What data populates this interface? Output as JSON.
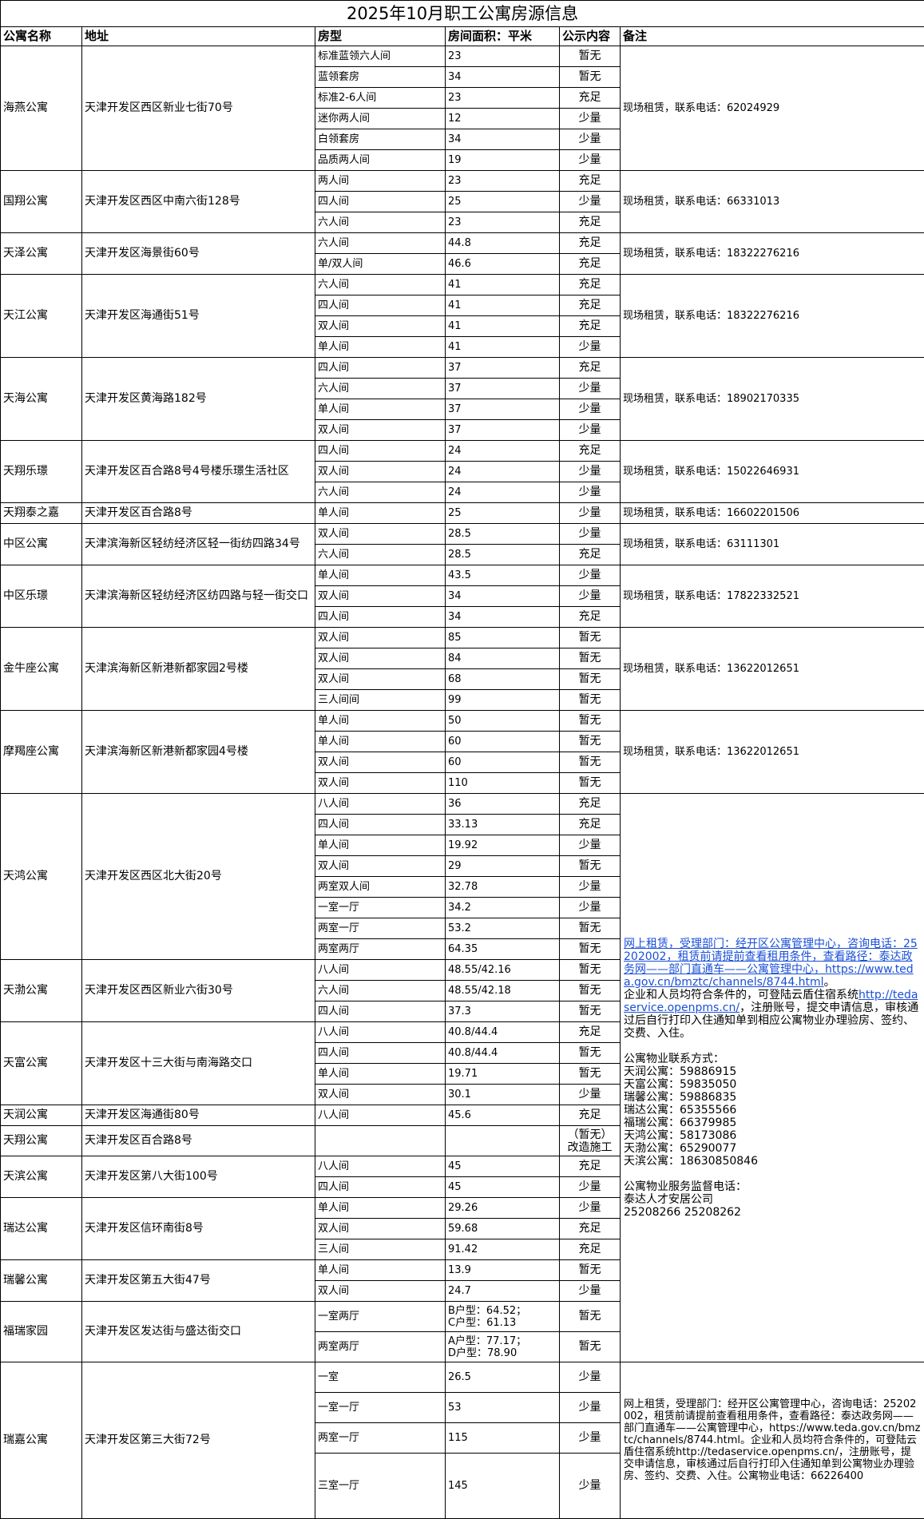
{
  "title": "2025年10月职工公寓房源信息",
  "headers": [
    "公寓名称",
    "地址",
    "房型",
    "房间面积：平米",
    "公示内容",
    "备注"
  ],
  "apartments": [
    {
      "name": "海燕公寓",
      "address": "天津开发区西区新业七街70号",
      "remark": "现场租赁，联系电话：62024929",
      "rooms": [
        {
          "type": "标准蓝领六人间",
          "area": "23",
          "status": "暂无"
        },
        {
          "type": "蓝领套房",
          "area": "34",
          "status": "暂无"
        },
        {
          "type": "标准2-6人间",
          "area": "23",
          "status": "充足"
        },
        {
          "type": "迷你两人间",
          "area": "12",
          "status": "少量"
        },
        {
          "type": "白领套房",
          "area": "34",
          "status": "少量"
        },
        {
          "type": "品质两人间",
          "area": "19",
          "status": "少量"
        }
      ]
    },
    {
      "name": "国翔公寓",
      "address": "天津开发区西区中南六街128号",
      "remark": "现场租赁，联系电话：66331013",
      "rooms": [
        {
          "type": "两人间",
          "area": "23",
          "status": "充足"
        },
        {
          "type": "四人间",
          "area": "25",
          "status": "少量"
        },
        {
          "type": "六人间",
          "area": "23",
          "status": "充足"
        }
      ]
    },
    {
      "name": "天泽公寓",
      "address": "天津开发区海景街60号",
      "remark": "现场租赁，联系电话：18322276216",
      "rooms": [
        {
          "type": "六人间",
          "area": "44.8",
          "status": "充足"
        },
        {
          "type": "单/双人间",
          "area": "46.6",
          "status": "充足"
        }
      ]
    },
    {
      "name": "天江公寓",
      "address": "天津开发区海通街51号",
      "remark": "现场租赁，联系电话：18322276216",
      "rooms": [
        {
          "type": "六人间",
          "area": "41",
          "status": "充足"
        },
        {
          "type": "四人间",
          "area": "41",
          "status": "充足"
        },
        {
          "type": "双人间",
          "area": "41",
          "status": "充足"
        },
        {
          "type": "单人间",
          "area": "41",
          "status": "少量"
        }
      ]
    },
    {
      "name": "天海公寓",
      "address": "天津开发区黄海路182号",
      "remark": "现场租赁，联系电话：18902170335",
      "rooms": [
        {
          "type": "四人间",
          "area": "37",
          "status": "充足"
        },
        {
          "type": "六人间",
          "area": "37",
          "status": "少量"
        },
        {
          "type": "单人间",
          "area": "37",
          "status": "少量"
        },
        {
          "type": "双人间",
          "area": "37",
          "status": "少量"
        }
      ]
    },
    {
      "name": "天翔乐璟",
      "address": "天津开发区百合路8号4号楼乐璟生活社区",
      "remark": "现场租赁，联系电话：15022646931",
      "rooms": [
        {
          "type": "四人间",
          "area": "24",
          "status": "充足"
        },
        {
          "type": "双人间",
          "area": "24",
          "status": "少量"
        },
        {
          "type": "六人间",
          "area": "24",
          "status": "少量"
        }
      ]
    },
    {
      "name": "天翔泰之嘉",
      "address": "天津开发区百合路8号",
      "remark": "现场租赁，联系电话：16602201506",
      "rooms": [
        {
          "type": "单人间",
          "area": "25",
          "status": "少量"
        }
      ]
    },
    {
      "name": "中区公寓",
      "address": "天津滨海新区轻纺经济区轻一街纺四路34号",
      "remark": "现场租赁，联系电话：63111301",
      "rooms": [
        {
          "type": "双人间",
          "area": "28.5",
          "status": "少量"
        },
        {
          "type": "六人间",
          "area": "28.5",
          "status": "充足"
        }
      ]
    },
    {
      "name": "中区乐璟",
      "address": "天津滨海新区轻纺经济区纺四路与轻一街交口",
      "remark": "现场租赁，联系电话：17822332521",
      "rooms": [
        {
          "type": "单人间",
          "area": "43.5",
          "status": "少量"
        },
        {
          "type": "双人间",
          "area": "34",
          "status": "少量"
        },
        {
          "type": "四人间",
          "area": "34",
          "status": "充足"
        }
      ]
    },
    {
      "name": "金牛座公寓",
      "address": "天津滨海新区新港新都家园2号楼",
      "remark": "现场租赁，联系电话：13622012651",
      "rooms": [
        {
          "type": "双人间",
          "area": "85",
          "status": "暂无"
        },
        {
          "type": "双人间",
          "area": "84",
          "status": "暂无"
        },
        {
          "type": "双人间",
          "area": "68",
          "status": "暂无"
        },
        {
          "type": "三人间间",
          "area": "99",
          "status": "暂无"
        }
      ]
    },
    {
      "name": "摩羯座公寓",
      "address": "天津滨海新区新港新都家园4号楼",
      "remark": "现场租赁，联系电话：13622012651",
      "rooms": [
        {
          "type": "单人间",
          "area": "50",
          "status": "暂无"
        },
        {
          "type": "单人间",
          "area": "60",
          "status": "暂无"
        },
        {
          "type": "双人间",
          "area": "60",
          "status": "暂无"
        },
        {
          "type": "双人间",
          "area": "110",
          "status": "暂无"
        }
      ]
    },
    {
      "name": "天鸿公寓",
      "address": "天津开发区西区北大街20号",
      "remark_key": "shared_remark",
      "rooms": [
        {
          "type": "八人间",
          "area": "36",
          "status": "充足"
        },
        {
          "type": "四人间",
          "area": "33.13",
          "status": "充足"
        },
        {
          "type": "单人间",
          "area": "19.92",
          "status": "少量"
        },
        {
          "type": "双人间",
          "area": "29",
          "status": "暂无"
        },
        {
          "type": "两室双人间",
          "area": "32.78",
          "status": "少量"
        },
        {
          "type": "一室一厅",
          "area": "34.2",
          "status": "少量"
        },
        {
          "type": "两室一厅",
          "area": "53.2",
          "status": "暂无"
        },
        {
          "type": "两室两厅",
          "area": "64.35",
          "status": "暂无"
        }
      ]
    },
    {
      "name": "天渤公寓",
      "address": "天津开发区西区新业六街30号",
      "remark_merged": true,
      "rooms": [
        {
          "type": "八人间",
          "area": "48.55/42.16",
          "status": "暂无"
        },
        {
          "type": "六人间",
          "area": "48.55/42.18",
          "status": "暂无"
        },
        {
          "type": "四人间",
          "area": "37.3",
          "status": "暂无"
        }
      ]
    },
    {
      "name": "天富公寓",
      "address": "天津开发区十三大街与南海路交口",
      "remark_merged": true,
      "rooms": [
        {
          "type": "八人间",
          "area": "40.8/44.4",
          "status": "充足"
        },
        {
          "type": "四人间",
          "area": "40.8/44.4",
          "status": "暂无"
        },
        {
          "type": "单人间",
          "area": "19.71",
          "status": "暂无"
        },
        {
          "type": "双人间",
          "area": "30.1",
          "status": "少量"
        }
      ]
    },
    {
      "name": "天润公寓",
      "address": "天津开发区海通街80号",
      "remark_merged": true,
      "rooms": [
        {
          "type": "八人间",
          "area": "45.6",
          "status": "充足"
        }
      ]
    },
    {
      "name": "天翔公寓",
      "address": "天津开发区百合路8号",
      "remark_merged": true,
      "rooms": [
        {
          "type": "",
          "area": "",
          "status": "（暂无）改造施工",
          "tall": true
        }
      ]
    },
    {
      "name": "天滨公寓",
      "address": "天津开发区第八大街100号",
      "remark_merged": true,
      "rooms": [
        {
          "type": "八人间",
          "area": "45",
          "status": "充足"
        },
        {
          "type": "四人间",
          "area": "45",
          "status": "少量"
        }
      ]
    },
    {
      "name": "瑞达公寓",
      "address": "天津开发区信环南街8号",
      "remark_merged": true,
      "rooms": [
        {
          "type": "单人间",
          "area": "29.26",
          "status": "少量"
        },
        {
          "type": "双人间",
          "area": "59.68",
          "status": "充足"
        },
        {
          "type": "三人间",
          "area": "91.42",
          "status": "充足"
        }
      ]
    },
    {
      "name": "瑞馨公寓",
      "address": "天津开发区第五大街47号",
      "remark_merged": true,
      "rooms": [
        {
          "type": "单人间",
          "area": "13.9",
          "status": "暂无"
        },
        {
          "type": "双人间",
          "area": "24.7",
          "status": "少量"
        }
      ]
    },
    {
      "name": "福瑞家园",
      "address": "天津开发区发达街与盛达街交口",
      "remark_merged": true,
      "rooms": [
        {
          "type": "一室两厅",
          "area": "B户型：64.52；\nC户型：61.13",
          "status": "暂无",
          "tall": true
        },
        {
          "type": "两室两厅",
          "area": "A户型：77.17；\nD户型：78.90",
          "status": "暂无",
          "tall": true
        }
      ]
    },
    {
      "name": "瑞嘉公寓",
      "address": "天津开发区第三大街72号",
      "remark_key": "ruijia_remark",
      "rooms": [
        {
          "type": "一室",
          "area": "26.5",
          "status": "少量",
          "tall": true
        },
        {
          "type": "一室一厅",
          "area": "53",
          "status": "少量",
          "tall": true
        },
        {
          "type": "两室一厅",
          "area": "115",
          "status": "少量",
          "tall": true
        },
        {
          "type": "三室一厅",
          "area": "145",
          "status": "少量",
          "big": true
        }
      ]
    }
  ],
  "shared_remark": [
    [
      {
        "text": "网上租赁，受理部门：经开区公寓管理中心，咨询电话：25202002，租赁前请提前查看租用条件，查看路径：泰达政务网——部门直通车——公寓管理中心，https://www.teda.gov.cn/bmztc/channels/8744.html",
        "link": true
      },
      {
        "text": "。"
      }
    ],
    [
      {
        "text": "企业和人员均符合条件的，可登陆云盾住宿系统"
      },
      {
        "text": "http://tedaservice.openpms.cn/",
        "link": true
      },
      {
        "text": "，注册账号，提交申请信息，审核通过后自行打印入住通知单到相应公寓物业办理验房、签约、交费、入住。"
      }
    ],
    [],
    [
      {
        "text": "公寓物业联系方式："
      }
    ],
    [
      {
        "text": "天润公寓：59886915"
      }
    ],
    [
      {
        "text": "天富公寓：59835050"
      }
    ],
    [
      {
        "text": "瑞馨公寓：59886835"
      }
    ],
    [
      {
        "text": "瑞达公寓：65355566"
      }
    ],
    [
      {
        "text": "福瑞公寓：66379985"
      }
    ],
    [
      {
        "text": "天鸿公寓：58173086"
      }
    ],
    [
      {
        "text": "天渤公寓：65290077"
      }
    ],
    [
      {
        "text": "天滨公寓：18630850846"
      }
    ],
    [],
    [
      {
        "text": "公寓物业服务监督电话："
      }
    ],
    [
      {
        "text": "泰达人才安居公司"
      }
    ],
    [
      {
        "text": "25208266 25208262"
      }
    ]
  ],
  "ruijia_remark": [
    [
      {
        "text": "网上租赁，受理部门：经开区公寓管理中心，咨询电话：25202002，租赁前请提前查看租用条件，查看路径：泰达政务网——部门直通车——公寓管理中心，https://www.teda.gov.cn/bmztc/channels/8744.html。企业和人员均符合条件的，可登陆云盾住宿系统http://tedaservice.openpms.cn/，注册账号，提交申请信息，审核通过后自行打印入住通知单到公寓物业办理验房、签约、交费、入住。公寓物业电话：66226400"
      }
    ]
  ]
}
